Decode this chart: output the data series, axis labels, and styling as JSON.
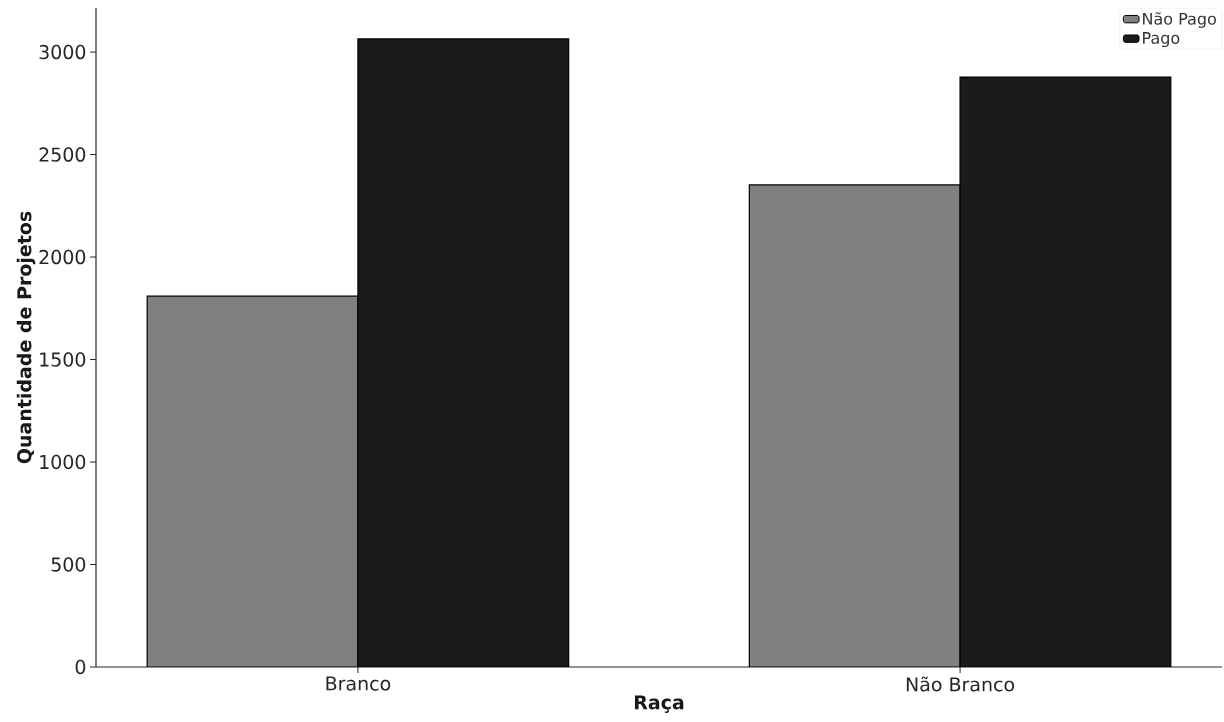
{
  "chart_data": {
    "type": "bar",
    "xlabel": "Raça",
    "ylabel": "Quantidade de Projetos",
    "categories": [
      "Branco",
      "Não Branco"
    ],
    "series": [
      {
        "name": "Não Pago",
        "color": "#808080",
        "values": [
          1809,
          2352
        ]
      },
      {
        "name": "Pago",
        "color": "#1b1b1b",
        "values": [
          3064,
          2878
        ]
      }
    ],
    "ylim": [
      0,
      3215
    ],
    "yticks": [
      0,
      500,
      1000,
      1500,
      2000,
      2500,
      3000
    ],
    "legend": "top right"
  }
}
